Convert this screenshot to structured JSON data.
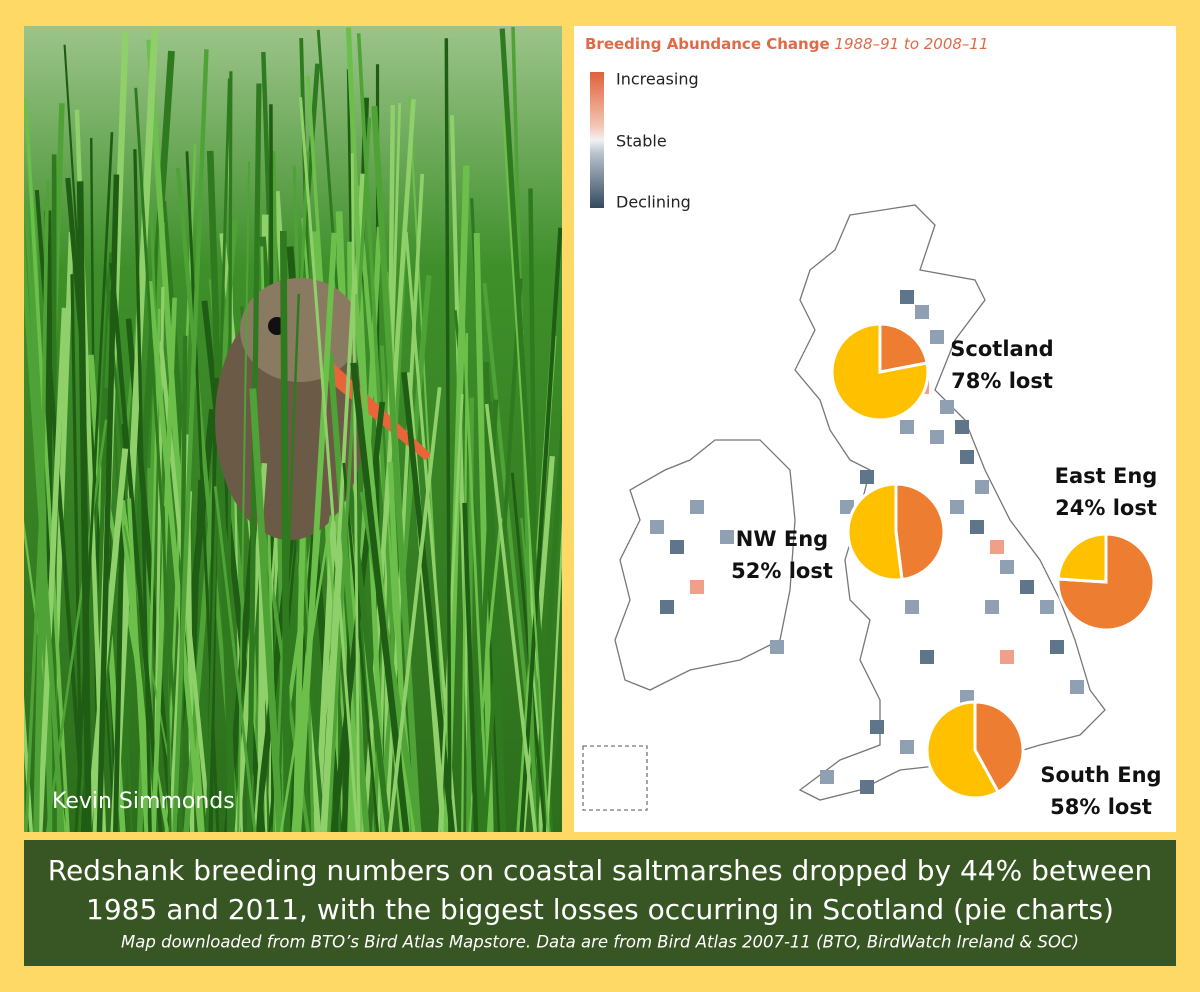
{
  "photo": {
    "credit": "Kevin Simmonds"
  },
  "map": {
    "title": "Breeding Abundance Change",
    "period": "1988–91 to 2008–11",
    "legend": [
      "Increasing",
      "Stable",
      "Declining"
    ]
  },
  "lost_color": "#ffc000",
  "remaining_color": "#ed7d31",
  "regions": [
    {
      "name": "Scotland",
      "label": "78% lost",
      "lost": 78
    },
    {
      "name": "NW Eng",
      "label": "52% lost",
      "lost": 52
    },
    {
      "name": "East Eng",
      "label": "24% lost",
      "lost": 24
    },
    {
      "name": "South Eng",
      "label": "58% lost",
      "lost": 58
    }
  ],
  "caption": {
    "line1": "Redshank breeding numbers on coastal saltmarshes dropped by 44% between",
    "line2": "1985 and 2011, with the biggest losses occurring in Scotland (pie charts)",
    "note": "Map downloaded from BTO’s Bird Atlas Mapstore. Data are from Bird Atlas 2007-11 (BTO, BirdWatch Ireland & SOC)"
  }
}
